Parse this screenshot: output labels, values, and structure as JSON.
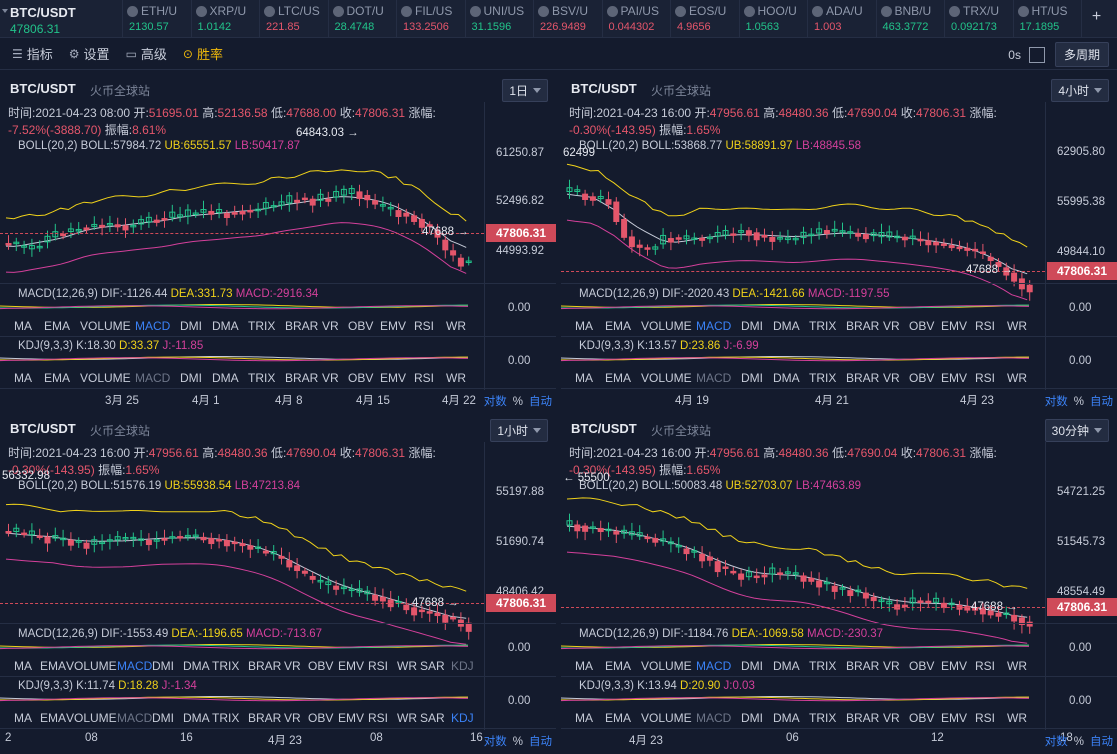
{
  "ticker": {
    "main": {
      "symbol": "BTC/USDT",
      "price": "47806.31"
    },
    "items": [
      {
        "name": "ETH/U",
        "price": "2130.57",
        "dir": "up"
      },
      {
        "name": "XRP/U",
        "price": "1.0142",
        "dir": "up"
      },
      {
        "name": "LTC/US",
        "price": "221.85",
        "dir": "dn"
      },
      {
        "name": "DOT/U",
        "price": "28.4748",
        "dir": "up"
      },
      {
        "name": "FIL/US",
        "price": "133.2506",
        "dir": "dn"
      },
      {
        "name": "UNI/US",
        "price": "31.1596",
        "dir": "up"
      },
      {
        "name": "BSV/U",
        "price": "226.9489",
        "dir": "dn"
      },
      {
        "name": "PAI/US",
        "price": "0.044302",
        "dir": "dn"
      },
      {
        "name": "EOS/U",
        "price": "4.9656",
        "dir": "dn"
      },
      {
        "name": "HOO/U",
        "price": "1.0563",
        "dir": "up"
      },
      {
        "name": "ADA/U",
        "price": "1.003",
        "dir": "dn"
      },
      {
        "name": "BNB/U",
        "price": "463.3772",
        "dir": "up"
      },
      {
        "name": "TRX/U",
        "price": "0.092173",
        "dir": "up"
      },
      {
        "name": "HT/US",
        "price": "17.1895",
        "dir": "up"
      }
    ],
    "more": "+"
  },
  "toolbar": {
    "indicators": "指标",
    "settings": "设置",
    "advanced": "高级",
    "winrate": "胜率",
    "seconds": "0s",
    "multi": "多周期"
  },
  "panels": [
    {
      "title": "BTC/USDT",
      "site": "火币全球站",
      "interval": "1日",
      "ohlc_line1": [
        "时间:2021-04-23 08:00",
        "开:",
        "51695.01",
        "高:",
        "52136.58",
        "低:",
        "47688.00",
        "收:",
        "47806.31",
        "涨幅:"
      ],
      "ohlc_line2": [
        "-7.52%(-3888.70)",
        "振幅:",
        "8.61%"
      ],
      "boll": {
        "label": "BOLL(20,2)",
        "mid": "BOLL:57984.72",
        "ub": "UB:65551.57",
        "lb": "LB:50417.87"
      },
      "yaxis": [
        "61250.87",
        "52496.82",
        "44993.92"
      ],
      "last": "47806.31",
      "high_annot": "64843.03 →",
      "low_annot": "47688 →",
      "macd": {
        "label": "MACD(12,26,9)",
        "dif": "DIF:-1126.44",
        "dea": "DEA:331.73",
        "macd": "MACD:-2916.34",
        "val": "0.00"
      },
      "tabs1": [
        "MA",
        "EMA",
        "VOLUME",
        "MACD",
        "DMI",
        "DMA",
        "TRIX",
        "BRAR",
        "VR",
        "OBV",
        "EMV",
        "RSI",
        "WR"
      ],
      "active1": "MACD",
      "kdj": {
        "label": "KDJ(9,3,3)",
        "k": "K:18.30",
        "d": "D:33.37",
        "j": "J:-11.85",
        "val": "0.00"
      },
      "tabs2": [
        "MA",
        "EMA",
        "VOLUME",
        "MACD",
        "DMI",
        "DMA",
        "TRIX",
        "BRAR",
        "VR",
        "OBV",
        "EMV",
        "RSI",
        "WR"
      ],
      "dim2": "MACD",
      "xaxis": [
        "3月 25",
        "4月 1",
        "4月 8",
        "4月 15",
        "4月 22"
      ],
      "xbtns": [
        "对数",
        "%",
        "自动"
      ]
    },
    {
      "title": "BTC/USDT",
      "site": "火币全球站",
      "interval": "4小时",
      "ohlc_line1": [
        "时间:2021-04-23 16:00",
        "开:",
        "47956.61",
        "高:",
        "48480.36",
        "低:",
        "47690.04",
        "收:",
        "47806.31",
        "涨幅:"
      ],
      "ohlc_line2": [
        "-0.30%(-143.95)",
        "振幅:",
        "1.65%"
      ],
      "boll": {
        "label": "BOLL(20,2)",
        "mid": "BOLL:53868.77",
        "ub": "UB:58891.97",
        "lb": "LB:48845.58"
      },
      "yaxis": [
        "62905.80",
        "55995.38",
        "49844.10"
      ],
      "last": "47806.31",
      "high_annot": "62499",
      "low_annot": "47688 →",
      "macd": {
        "label": "MACD(12,26,9)",
        "dif": "DIF:-2020.43",
        "dea": "DEA:-1421.66",
        "macd": "MACD:-1197.55",
        "val": "0.00"
      },
      "tabs1": [
        "MA",
        "EMA",
        "VOLUME",
        "MACD",
        "DMI",
        "DMA",
        "TRIX",
        "BRAR",
        "VR",
        "OBV",
        "EMV",
        "RSI",
        "WR"
      ],
      "active1": "MACD",
      "kdj": {
        "label": "KDJ(9,3,3)",
        "k": "K:13.57",
        "d": "D:23.86",
        "j": "J:-6.99",
        "val": "0.00"
      },
      "tabs2": [
        "MA",
        "EMA",
        "VOLUME",
        "MACD",
        "DMI",
        "DMA",
        "TRIX",
        "BRAR",
        "VR",
        "OBV",
        "EMV",
        "RSI",
        "WR"
      ],
      "dim2": "MACD",
      "xaxis": [
        "4月 19",
        "4月 21",
        "4月 23"
      ],
      "xbtns": [
        "对数",
        "%",
        "自动"
      ]
    },
    {
      "title": "BTC/USDT",
      "site": "火币全球站",
      "interval": "1小时",
      "ohlc_line1": [
        "时间:2021-04-23 16:00",
        "开:",
        "47956.61",
        "高:",
        "48480.36",
        "低:",
        "47690.04",
        "收:",
        "47806.31",
        "涨幅:"
      ],
      "ohlc_line2": [
        "-0.30%(-143.95)",
        "振幅:",
        "1.65%"
      ],
      "boll": {
        "label": "BOLL(20,2)",
        "mid": "BOLL:51576.19",
        "ub": "UB:55938.54",
        "lb": "LB:47213.84"
      },
      "yaxis": [
        "55197.88",
        "51690.74",
        "48406.42"
      ],
      "last": "47806.31",
      "high_annot": "56332.98",
      "low_annot": "47688 →",
      "macd": {
        "label": "MACD(12,26,9)",
        "dif": "DIF:-1553.49",
        "dea": "DEA:-1196.65",
        "macd": "MACD:-713.67",
        "val": "0.00"
      },
      "tabs1": [
        "MA",
        "EMA",
        "VOLUME",
        "MACD",
        "DMI",
        "DMA",
        "TRIX",
        "BRAR",
        "VR",
        "OBV",
        "EMV",
        "RSI",
        "WR",
        "SAR",
        "KDJ"
      ],
      "active1": "MACD",
      "kdj": {
        "label": "KDJ(9,3,3)",
        "k": "K:11.74",
        "d": "D:18.28",
        "j": "J:-1.34",
        "val": "0.00"
      },
      "tabs2": [
        "MA",
        "EMA",
        "VOLUME",
        "MACD",
        "DMI",
        "DMA",
        "TRIX",
        "BRAR",
        "VR",
        "OBV",
        "EMV",
        "RSI",
        "WR",
        "SAR",
        "KDJ"
      ],
      "dim2": "MACD",
      "active2": "KDJ",
      "xaxis": [
        "2",
        "08",
        "16",
        "4月 23",
        "08",
        "16"
      ],
      "xbtns": [
        "对数",
        "%",
        "自动"
      ]
    },
    {
      "title": "BTC/USDT",
      "site": "火币全球站",
      "interval": "30分钟",
      "ohlc_line1": [
        "时间:2021-04-23 16:00",
        "开:",
        "47956.61",
        "高:",
        "48480.36",
        "低:",
        "47690.04",
        "收:",
        "47806.31",
        "涨幅:"
      ],
      "ohlc_line2": [
        "-0.30%(-143.95)",
        "振幅:",
        "1.65%"
      ],
      "boll": {
        "label": "BOLL(20,2)",
        "mid": "BOLL:50083.48",
        "ub": "UB:52703.07",
        "lb": "LB:47463.89"
      },
      "yaxis": [
        "54721.25",
        "51545.73",
        "48554.49"
      ],
      "last": "47806.31",
      "high_annot": "← 55500",
      "low_annot": "47688 →",
      "macd": {
        "label": "MACD(12,26,9)",
        "dif": "DIF:-1184.76",
        "dea": "DEA:-1069.58",
        "macd": "MACD:-230.37",
        "val": "0.00"
      },
      "tabs1": [
        "MA",
        "EMA",
        "VOLUME",
        "MACD",
        "DMI",
        "DMA",
        "TRIX",
        "BRAR",
        "VR",
        "OBV",
        "EMV",
        "RSI",
        "WR"
      ],
      "active1": "MACD",
      "kdj": {
        "label": "KDJ(9,3,3)",
        "k": "K:13.94",
        "d": "D:20.90",
        "j": "J:0.03",
        "val": "0.00"
      },
      "tabs2": [
        "MA",
        "EMA",
        "VOLUME",
        "MACD",
        "DMI",
        "DMA",
        "TRIX",
        "BRAR",
        "VR",
        "OBV",
        "EMV",
        "RSI",
        "WR"
      ],
      "dim2": "MACD",
      "xaxis": [
        "4月 23",
        "06",
        "12",
        "18"
      ],
      "xbtns": [
        "对数",
        "%",
        "自动"
      ]
    }
  ],
  "colors": {
    "up": "#22c38a",
    "down": "#e4566b",
    "ub": "#f0d21a",
    "lb": "#d4409b",
    "mid": "#c6cbd8",
    "accent": "#3b82f6"
  }
}
